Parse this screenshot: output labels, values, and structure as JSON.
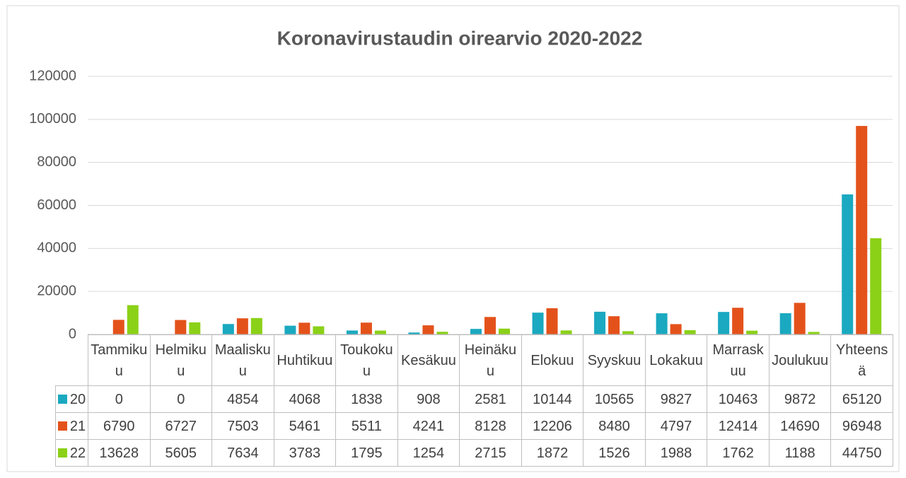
{
  "chart_data": {
    "type": "bar",
    "title": "Koronavirustaudin oirearvio 2020-2022",
    "categories": [
      "Tammikuu",
      "Helmikuu",
      "Maaliskuu",
      "Huhtikuu",
      "Toukokuu",
      "Kesäkuu",
      "Heinäkuu",
      "Elokuu",
      "Syyskuu",
      "Lokakuu",
      "Marraskuu",
      "Joulukuu",
      "Yhteensä"
    ],
    "series": [
      {
        "name": "20",
        "color": "#1aa9c0",
        "values": [
          0,
          0,
          4854,
          4068,
          1838,
          908,
          2581,
          10144,
          10565,
          9827,
          10463,
          9872,
          65120
        ]
      },
      {
        "name": "21",
        "color": "#e4521b",
        "values": [
          6790,
          6727,
          7503,
          5461,
          5511,
          4241,
          8128,
          12206,
          8480,
          4797,
          12414,
          14690,
          96948
        ]
      },
      {
        "name": "22",
        "color": "#8bd118",
        "values": [
          13628,
          5605,
          7634,
          3783,
          1795,
          1254,
          2715,
          1872,
          1526,
          1988,
          1762,
          1188,
          44750
        ]
      }
    ],
    "ylim": [
      0,
      120000
    ],
    "yticks": [
      0,
      20000,
      40000,
      60000,
      80000,
      100000,
      120000
    ],
    "grid": true
  }
}
